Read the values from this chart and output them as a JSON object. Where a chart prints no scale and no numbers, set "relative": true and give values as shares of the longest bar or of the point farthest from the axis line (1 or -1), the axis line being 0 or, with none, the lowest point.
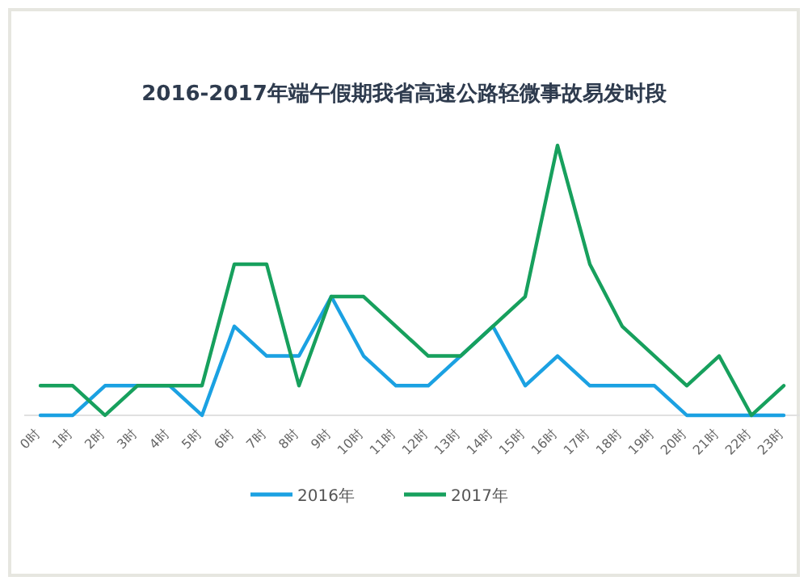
{
  "chart_data": {
    "type": "line",
    "title": "2016-2017年端午假期我省高速公路轻微事故易发时段",
    "relative": true,
    "legend": "bottom",
    "marker": "none",
    "categories": [
      "0时",
      "1时",
      "2时",
      "3时",
      "4时",
      "5时",
      "6时",
      "7时",
      "8时",
      "9时",
      "10时",
      "11时",
      "12时",
      "13时",
      "14时",
      "15时",
      "16时",
      "17时",
      "18时",
      "19时",
      "20时",
      "21时",
      "22时",
      "23时"
    ],
    "series": [
      {
        "name": "2016年",
        "color": "#1ba1e2",
        "values": [
          0,
          0,
          0.11,
          0.11,
          0.11,
          0,
          0.33,
          0.22,
          0.22,
          0.44,
          0.22,
          0.11,
          0.11,
          0.22,
          0.33,
          0.11,
          0.22,
          0.11,
          0.11,
          0.11,
          0,
          0,
          0,
          0
        ]
      },
      {
        "name": "2017年",
        "color": "#17a05d",
        "values": [
          0.11,
          0.11,
          0,
          0.11,
          0.11,
          0.11,
          0.56,
          0.56,
          0.11,
          0.44,
          0.44,
          0.33,
          0.22,
          0.22,
          0.33,
          0.44,
          1,
          0.56,
          0.33,
          0.22,
          0.11,
          0.22,
          0,
          0.11
        ]
      }
    ]
  }
}
